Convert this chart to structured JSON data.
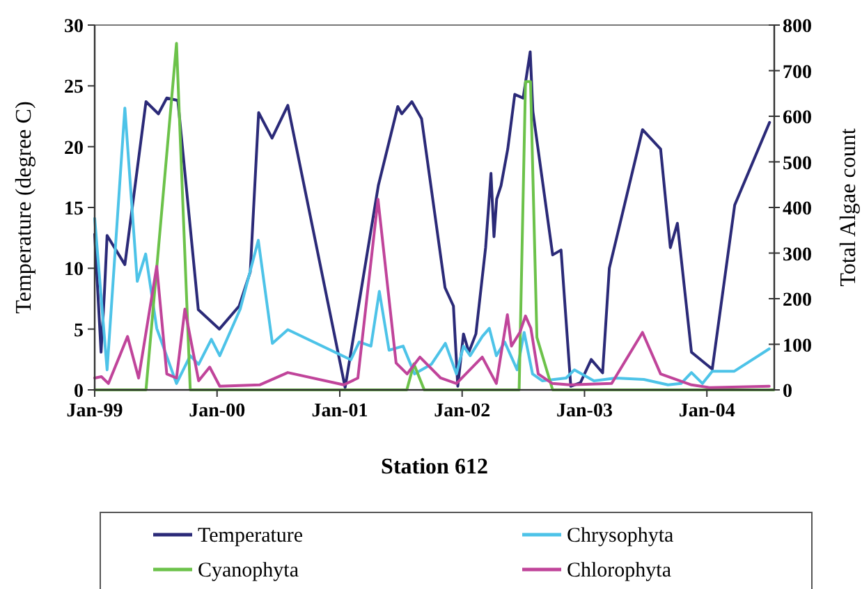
{
  "chart_data": {
    "type": "line",
    "xlabel": "Station 612",
    "ylabel": "Temperature (degree C)",
    "y2label": "Total Algae count",
    "xlim": [
      "1999-01-01",
      "2004-07-20"
    ],
    "xticks": [
      {
        "value": "1999-01-01",
        "label": "Jan-99"
      },
      {
        "value": "2000-01-01",
        "label": "Jan-00"
      },
      {
        "value": "2001-01-01",
        "label": "Jan-01"
      },
      {
        "value": "2002-01-01",
        "label": "Jan-02"
      },
      {
        "value": "2003-01-01",
        "label": "Jan-03"
      },
      {
        "value": "2004-01-01",
        "label": "Jan-04"
      }
    ],
    "ylim": [
      0,
      30
    ],
    "yticks": [
      0,
      5,
      10,
      15,
      20,
      25,
      30
    ],
    "y2lim": [
      0,
      800
    ],
    "y2ticks": [
      0,
      100,
      200,
      300,
      400,
      500,
      600,
      700,
      800
    ],
    "grid": false,
    "legend": "bottom",
    "marker": "none",
    "line_style": "solid",
    "series": [
      {
        "name": "Temperature",
        "color": "#2b2a78",
        "x": [
          "1999-01-01",
          "1999-01-20",
          "1999-01-30",
          "1999-02-07",
          "1999-04-01",
          "1999-06-03",
          "1999-07-10",
          "1999-08-04",
          "1999-09-06",
          "1999-11-06",
          "2000-01-08",
          "2000-03-07",
          "2000-04-09",
          "2000-05-04",
          "2000-06-13",
          "2000-07-30",
          "2001-01-17",
          "2001-04-26",
          "2001-06-23",
          "2001-07-05",
          "2001-08-04",
          "2001-09-02",
          "2001-11-11",
          "2001-12-06",
          "2001-12-19",
          "2002-01-05",
          "2002-01-21",
          "2002-02-11",
          "2002-03-12",
          "2002-03-28",
          "2002-04-06",
          "2002-04-14",
          "2002-04-27",
          "2002-05-17",
          "2002-06-07",
          "2002-07-02",
          "2002-07-23",
          "2002-07-31",
          "2002-09-28",
          "2002-10-23",
          "2002-11-21",
          "2002-12-20",
          "2003-01-21",
          "2003-02-24",
          "2003-03-16",
          "2003-06-23",
          "2003-08-16",
          "2003-09-14",
          "2003-10-05",
          "2003-11-16",
          "2004-01-17",
          "2004-03-24",
          "2004-07-06"
        ],
        "values": [
          12.8,
          3.1,
          8,
          12.7,
          10.3,
          23.7,
          22.7,
          24,
          23.8,
          6.6,
          5,
          6.9,
          9.7,
          22.8,
          20.7,
          23.4,
          0.2,
          16.8,
          23.3,
          22.7,
          23.7,
          22.3,
          8.4,
          6.9,
          0.3,
          4.6,
          3.1,
          4.6,
          11.7,
          17.8,
          12.6,
          15.7,
          16.8,
          19.8,
          24.3,
          24,
          27.8,
          22.9,
          11.1,
          11.5,
          0.3,
          0.6,
          2.5,
          1.4,
          10,
          21.4,
          19.8,
          11.7,
          13.7,
          3.1,
          1.7,
          15.2,
          22
        ]
      },
      {
        "name": "Chrysophyta",
        "color": "#4dc3e8",
        "axis": "y2",
        "x": [
          "1999-01-01",
          "1999-02-07",
          "1999-04-01",
          "1999-05-08",
          "1999-06-02",
          "1999-07-05",
          "1999-09-02",
          "1999-10-13",
          "1999-11-07",
          "1999-12-15",
          "2000-01-09",
          "2000-03-10",
          "2000-05-03",
          "2000-06-14",
          "2000-07-30",
          "2001-02-03",
          "2001-02-28",
          "2001-04-04",
          "2001-04-29",
          "2001-05-28",
          "2001-07-09",
          "2001-08-12",
          "2001-10-01",
          "2001-11-12",
          "2001-12-15",
          "2002-01-05",
          "2002-01-25",
          "2002-03-02",
          "2002-03-23",
          "2002-04-13",
          "2002-05-08",
          "2002-06-14",
          "2002-07-05",
          "2002-07-30",
          "2002-08-28",
          "2002-11-07",
          "2002-12-02",
          "2003-01-29",
          "2003-04-04",
          "2003-06-27",
          "2003-09-07",
          "2003-10-16",
          "2003-11-16",
          "2003-12-19",
          "2004-01-17",
          "2004-03-23",
          "2004-07-05"
        ],
        "values": [
          376,
          44,
          618,
          238,
          298,
          135,
          14,
          75,
          56,
          111,
          75,
          177,
          328,
          102,
          132,
          66,
          105,
          96,
          216,
          87,
          96,
          35,
          56,
          102,
          35,
          96,
          75,
          117,
          135,
          75,
          105,
          44,
          126,
          35,
          20,
          26,
          44,
          20,
          26,
          23,
          11,
          14,
          38,
          14,
          41,
          41,
          90
        ]
      },
      {
        "name": "Cyanophyta",
        "color": "#6cc24a",
        "axis": "y2",
        "x": [
          "1999-01-01",
          "1999-06-03",
          "1999-09-02",
          "1999-10-13",
          "2001-07-20",
          "2001-08-10",
          "2001-09-10",
          "2002-06-20",
          "2002-07-09",
          "2002-07-24",
          "2002-08-12",
          "2002-09-28",
          "2004-07-19"
        ],
        "values": [
          0,
          0,
          760,
          0,
          0,
          57,
          0,
          0,
          676,
          676,
          115,
          0,
          0
        ]
      },
      {
        "name": "Chlorophyta",
        "color": "#c0449a",
        "axis": "y2",
        "x": [
          "1999-01-01",
          "1999-01-21",
          "1999-02-11",
          "1999-04-09",
          "1999-05-12",
          "1999-07-05",
          "1999-08-04",
          "1999-09-02",
          "1999-09-27",
          "1999-11-07",
          "1999-12-10",
          "2000-01-09",
          "2000-05-07",
          "2000-07-30",
          "2001-01-13",
          "2001-02-24",
          "2001-04-25",
          "2001-06-18",
          "2001-07-21",
          "2001-08-28",
          "2001-10-29",
          "2001-12-15",
          "2002-03-02",
          "2002-04-13",
          "2002-05-16",
          "2002-05-28",
          "2002-06-22",
          "2002-07-09",
          "2002-07-25",
          "2002-08-16",
          "2002-09-27",
          "2002-11-19",
          "2003-03-23",
          "2003-06-23",
          "2003-08-16",
          "2003-11-16",
          "2004-01-09",
          "2004-07-05"
        ],
        "values": [
          26,
          29,
          14,
          117,
          26,
          271,
          35,
          26,
          177,
          20,
          50,
          8,
          11,
          38,
          11,
          26,
          418,
          59,
          35,
          72,
          26,
          14,
          72,
          14,
          165,
          96,
          126,
          162,
          135,
          35,
          14,
          11,
          14,
          126,
          35,
          11,
          5,
          8
        ]
      }
    ]
  }
}
